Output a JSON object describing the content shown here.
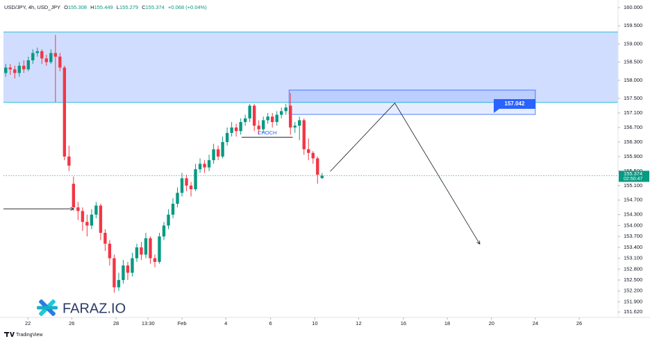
{
  "header": {
    "symbol": "USD/JPY, 4h, USD_JPY",
    "ohlc_labels": [
      "O",
      "H",
      "L",
      "C"
    ],
    "change": "+0.068 (+0.04%)",
    "countdown": "02:50:47"
  },
  "watermark": "FARAZ.IO",
  "footer": "TradingView",
  "chart_data": {
    "type": "candlestick",
    "open": [
      158.2,
      158.35,
      158.3,
      158.2,
      158.4,
      158.3,
      158.55,
      158.75,
      158.8,
      158.6,
      158.5,
      158.75,
      158.65,
      158.35,
      155.9,
      155.15,
      154.5,
      154.4,
      154.1,
      154,
      154.3,
      154.55,
      153.8,
      153.5,
      153.1,
      152.3,
      152.5,
      152.9,
      152.7,
      153.1,
      153.4,
      153.2,
      153.65,
      153.1,
      153,
      153.7,
      154,
      154.3,
      154.6,
      154.9,
      155.3,
      155.1,
      155,
      155.55,
      155.7,
      155.6,
      155.8,
      156.1,
      155.9,
      156.3,
      156.55,
      156.7,
      156.6,
      156.85,
      156.95,
      157.3,
      156.75,
      156.65,
      156.9,
      157,
      156.85,
      157.05,
      157.15,
      157.3,
      156.7,
      156.75,
      156.9,
      156.1,
      156,
      155.85,
      155.308
    ],
    "high": [
      158.45,
      158.45,
      158.4,
      158.5,
      158.55,
      158.65,
      158.85,
      158.9,
      158.85,
      158.7,
      158.85,
      159.25,
      158.75,
      158.4,
      156.2,
      155.35,
      154.65,
      154.5,
      154.3,
      154.45,
      154.65,
      154.6,
      153.9,
      153.6,
      153.2,
      152.7,
      153.05,
      153,
      153.25,
      153.5,
      153.55,
      153.8,
      153.7,
      153.2,
      153.8,
      154.1,
      154.45,
      154.75,
      155.05,
      155.45,
      155.4,
      155.2,
      155.7,
      155.85,
      155.8,
      155.95,
      156.25,
      156.2,
      156.45,
      156.7,
      156.85,
      156.8,
      156.95,
      157.05,
      157.35,
      157.35,
      156.9,
      157,
      157.1,
      157.1,
      157.15,
      157.25,
      157.35,
      157.65,
      156.85,
      157,
      156.95,
      156.4,
      156.05,
      155.9,
      155.449
    ],
    "low": [
      158.1,
      158.15,
      158.05,
      158.1,
      158.2,
      158.25,
      158.45,
      158.65,
      158.45,
      158.4,
      158.45,
      157.4,
      158.25,
      155.8,
      155.5,
      154.4,
      154.15,
      153.85,
      153.7,
      153.9,
      154.2,
      153.6,
      153.3,
      152.9,
      152.15,
      152.2,
      152.4,
      152.5,
      152.6,
      153,
      153.05,
      153.1,
      152.95,
      152.85,
      152.95,
      153.6,
      153.9,
      154.2,
      154.5,
      154.8,
      154.95,
      154.8,
      154.95,
      155.45,
      155.45,
      155.5,
      155.7,
      155.8,
      155.85,
      156.2,
      156.45,
      156.45,
      156.5,
      156.75,
      156.85,
      156.6,
      156.5,
      156.55,
      156.8,
      156.7,
      156.75,
      156.95,
      157.05,
      156.5,
      156.55,
      156.35,
      155.95,
      155.8,
      155.7,
      155.15,
      155.279
    ],
    "close": [
      158.35,
      158.3,
      158.2,
      158.4,
      158.3,
      158.55,
      158.75,
      158.8,
      158.6,
      158.5,
      158.75,
      158.65,
      158.35,
      155.9,
      155.65,
      154.5,
      154.4,
      154.1,
      154,
      154.3,
      154.55,
      153.8,
      153.5,
      153.1,
      152.3,
      152.5,
      152.9,
      152.7,
      153.1,
      153.4,
      153.2,
      153.65,
      153.1,
      153,
      153.7,
      154,
      154.3,
      154.6,
      154.9,
      155.3,
      155.1,
      155,
      155.55,
      155.7,
      155.6,
      155.8,
      156.1,
      155.9,
      156.3,
      156.55,
      156.7,
      156.6,
      156.85,
      156.95,
      157.3,
      156.75,
      156.65,
      156.9,
      157,
      156.85,
      157.05,
      157.15,
      157.25,
      156.7,
      156.75,
      156.9,
      156.1,
      156,
      155.85,
      155.4,
      155.374
    ],
    "up_color": "#089981",
    "down_color": "#f23645",
    "xlim": [
      -0.5,
      135.5
    ],
    "ylim": [
      151.47,
      160.21
    ],
    "xticks": [
      {
        "value": 4.9,
        "label": "22"
      },
      {
        "value": 14.6,
        "label": "26"
      },
      {
        "value": 24.4,
        "label": "28"
      },
      {
        "value": 31.5,
        "label": "13:30"
      },
      {
        "value": 39,
        "label": "Feb"
      },
      {
        "value": 48.7,
        "label": "4"
      },
      {
        "value": 58.6,
        "label": "6"
      },
      {
        "value": 68.4,
        "label": "10"
      },
      {
        "value": 78.1,
        "label": "12"
      },
      {
        "value": 88,
        "label": "16"
      },
      {
        "value": 97.7,
        "label": "18"
      },
      {
        "value": 107.5,
        "label": "20"
      },
      {
        "value": 117.2,
        "label": "24"
      },
      {
        "value": 126.9,
        "label": "26"
      }
    ],
    "yticks": [
      {
        "value": 160,
        "label": "160.000"
      },
      {
        "value": 159.5,
        "label": "159.500"
      },
      {
        "value": 159,
        "label": "159.000"
      },
      {
        "value": 158.5,
        "label": "158.500"
      },
      {
        "value": 158,
        "label": "158.000"
      },
      {
        "value": 157.5,
        "label": "157.500"
      },
      {
        "value": 157.1,
        "label": "157.100"
      },
      {
        "value": 156.7,
        "label": "156.700"
      },
      {
        "value": 156.3,
        "label": "156.300"
      },
      {
        "value": 155.9,
        "label": "155.900"
      },
      {
        "value": 155.5,
        "label": "155.500"
      },
      {
        "value": 155.1,
        "label": "155.100"
      },
      {
        "value": 154.7,
        "label": "154.700"
      },
      {
        "value": 154.3,
        "label": "154.300"
      },
      {
        "value": 154,
        "label": "154.000"
      },
      {
        "value": 153.7,
        "label": "153.700"
      },
      {
        "value": 153.4,
        "label": "153.400"
      },
      {
        "value": 153.1,
        "label": "153.100"
      },
      {
        "value": 152.8,
        "label": "152.800"
      },
      {
        "value": 152.5,
        "label": "152.500"
      },
      {
        "value": 152.2,
        "label": "152.200"
      },
      {
        "value": 151.9,
        "label": "151.900"
      },
      {
        "value": 151.62,
        "label": "151.620"
      }
    ],
    "grid": false,
    "zones": [
      {
        "top": 159.33,
        "bottom": 157.39,
        "from": -0.5,
        "to": 135.5
      },
      {
        "top": 157.73,
        "bottom": 157.06,
        "from": 62.7,
        "to": 117.2
      }
    ],
    "level": {
      "price": 154.46,
      "from": -0.5,
      "to": 15
    },
    "choch": {
      "text": "CHOCH",
      "price": 156.43,
      "from": 52.2,
      "to": 63.5
    },
    "projection": {
      "x": [
        71.8,
        86.1,
        104.9
      ],
      "y": [
        155.49,
        157.37,
        153.49
      ]
    },
    "target": {
      "price": 157.042,
      "at": 112.6
    }
  }
}
